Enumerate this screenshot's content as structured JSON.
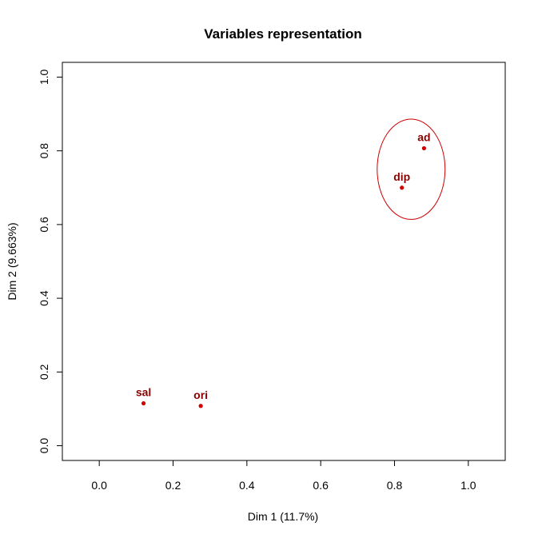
{
  "chart_data": {
    "type": "scatter",
    "title": "Variables representation",
    "xlabel": "Dim 1 (11.7%)",
    "ylabel": "Dim 2 (9.663%)",
    "xlim": [
      -0.1,
      1.1
    ],
    "ylim": [
      -0.04,
      1.04
    ],
    "xticks": [
      "0.0",
      "0.2",
      "0.4",
      "0.6",
      "0.8",
      "1.0"
    ],
    "yticks": [
      "0.0",
      "0.2",
      "0.4",
      "0.6",
      "0.8",
      "1.0"
    ],
    "grid": false,
    "point_color": "#cc0000",
    "label_color": "#8b0000",
    "ellipse_color": "#cc0000",
    "points": [
      {
        "label": "sal",
        "x": 0.12,
        "y": 0.115
      },
      {
        "label": "ori",
        "x": 0.275,
        "y": 0.108
      },
      {
        "label": "dip",
        "x": 0.82,
        "y": 0.7
      },
      {
        "label": "ad",
        "x": 0.88,
        "y": 0.807
      }
    ],
    "ellipse": {
      "cx": 0.845,
      "cy": 0.75,
      "rx": 0.092,
      "ry": 0.136
    }
  }
}
